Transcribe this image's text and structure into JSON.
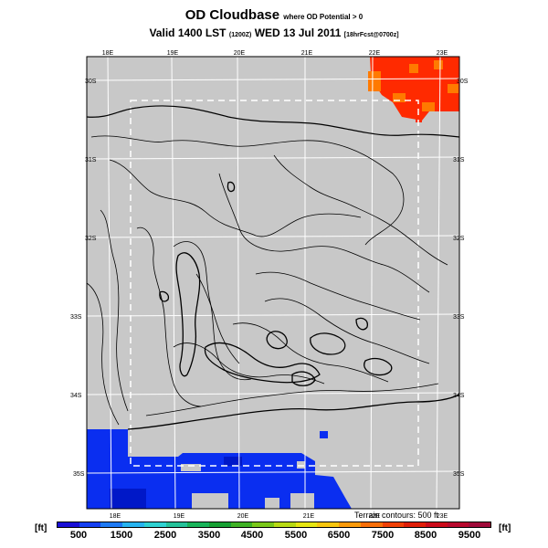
{
  "title": {
    "main": "OD Cloudbase",
    "qualifier": "where OD Potential > 0",
    "valid_prefix": "Valid 1400 LST",
    "valid_code": "(1200Z)",
    "valid_date": "WED 13 Jul 2011",
    "model_tag": "[18hrFcst@0700z]"
  },
  "map": {
    "lon_labels_top": [
      "18E",
      "19E",
      "20E",
      "21E",
      "22E",
      "23E"
    ],
    "lon_labels_bottom": [
      "18E",
      "19E",
      "20E",
      "21E",
      "22E",
      "23E"
    ],
    "lat_labels_left": [
      "30S",
      "31S",
      "32S",
      "33S",
      "34S",
      "35S"
    ],
    "lat_labels_right": [
      "30S",
      "31S",
      "32S",
      "33S",
      "34S",
      "35S"
    ],
    "terrain_note": "Terrain contours: 500 ft",
    "colors": {
      "background": "#c8c8c8",
      "land_gray": "#c8c8c8",
      "grid": "#ffffff",
      "contour": "#000000",
      "high_red": "#ff2a00",
      "high_orange": "#ff7a00",
      "low_blue": "#0a2ef0",
      "low_blue_dark": "#0018c8"
    }
  },
  "colorbar": {
    "unit_left": "[ft]",
    "unit_right": "[ft]",
    "tick_labels": [
      "500",
      "1500",
      "2500",
      "3500",
      "4500",
      "5500",
      "6500",
      "7500",
      "8500",
      "9500"
    ],
    "colors": [
      "#1a0fd6",
      "#1540f2",
      "#1e7af5",
      "#28b4f0",
      "#2fd2d2",
      "#25c29a",
      "#19b45a",
      "#17a033",
      "#3fb225",
      "#7ac81a",
      "#b8da14",
      "#e6e612",
      "#f8c60e",
      "#fb9a0a",
      "#f96e08",
      "#f04006",
      "#e01e08",
      "#cc0a1a",
      "#b8082e",
      "#a00a3a"
    ]
  }
}
